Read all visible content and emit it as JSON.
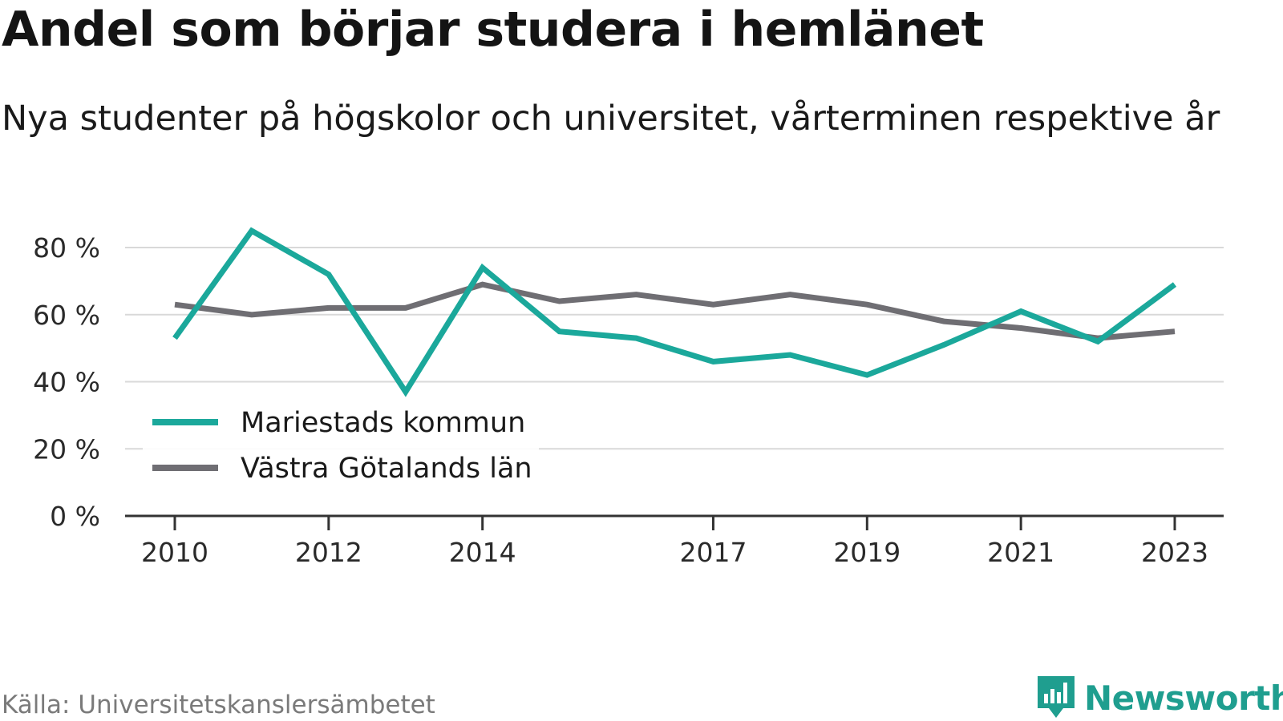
{
  "title": "Andel som börjar studera i hemlänet",
  "subtitle": "Nya studenter på högskolor och universitet, vårterminen respektive år",
  "source": "Källa: Universitetskanslersämbetet",
  "brand": "Newsworthy",
  "colors": {
    "accent": "#1ba89b",
    "secondary": "#6f6e73",
    "grid": "#d9d9d9",
    "axis": "#333333",
    "brand": "#1f9e8f"
  },
  "chart_data": {
    "type": "line",
    "x": [
      2010,
      2011,
      2012,
      2013,
      2014,
      2015,
      2016,
      2017,
      2018,
      2019,
      2020,
      2021,
      2022,
      2023
    ],
    "x_tick_labels": [
      "2010",
      "2012",
      "2014",
      "2017",
      "2019",
      "2021",
      "2023"
    ],
    "x_tick_values": [
      2010,
      2012,
      2014,
      2017,
      2019,
      2021,
      2023
    ],
    "y_tick_labels": [
      "0 %",
      "20 %",
      "40 %",
      "60 %",
      "80 %"
    ],
    "y_tick_values": [
      0,
      20,
      40,
      60,
      80
    ],
    "ylim": [
      0,
      80
    ],
    "grid": true,
    "legend_position": "bottom-left",
    "series": [
      {
        "name": "Mariestads kommun",
        "color": "#1ba89b",
        "values": [
          53,
          85,
          72,
          37,
          74,
          55,
          53,
          46,
          48,
          42,
          51,
          61,
          52,
          69
        ]
      },
      {
        "name": "Västra Götalands län",
        "color": "#6f6e73",
        "values": [
          63,
          60,
          62,
          62,
          69,
          64,
          66,
          63,
          66,
          63,
          58,
          56,
          53,
          55
        ]
      }
    ]
  }
}
